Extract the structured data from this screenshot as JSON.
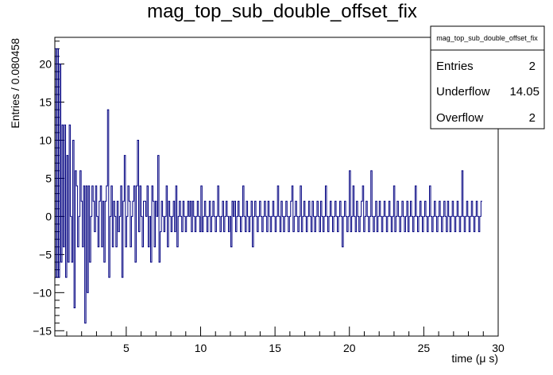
{
  "chart_data": {
    "type": "line",
    "title": "mag_top_sub_double_offset_fix",
    "xlabel": "time (μ s)",
    "ylabel": "Entries / 0.080458",
    "xlim": [
      0.2,
      30
    ],
    "ylim": [
      -15.7,
      23.5
    ],
    "xticks": [
      5,
      10,
      15,
      20,
      25,
      30
    ],
    "yticks": [
      -15,
      -10,
      -5,
      0,
      5,
      10,
      15,
      20
    ],
    "grid": false,
    "legend": "top-right",
    "line_color": "#000080",
    "bin_width": 0.080458,
    "series": [
      {
        "x0": 0.2,
        "values": [
          22,
          -8,
          22,
          -8,
          20,
          -6,
          12,
          -4,
          12,
          -8,
          8,
          -6,
          12,
          0,
          -6,
          10,
          -12,
          6,
          4,
          -4,
          0,
          6,
          2,
          -4,
          4,
          -14,
          4,
          -10,
          4,
          -6,
          0,
          4,
          2,
          -2,
          4,
          0,
          -4,
          2,
          4,
          -4,
          2,
          -6,
          2,
          4,
          14,
          -8,
          0,
          4,
          -4,
          2,
          0,
          -4,
          2,
          -2,
          0,
          4,
          -8,
          2,
          8,
          -4,
          0,
          4,
          2,
          -4,
          0,
          2,
          4,
          -6,
          4,
          10,
          -2,
          4,
          0,
          -4,
          2,
          2,
          0,
          4,
          -4,
          0,
          -6,
          4,
          2,
          -4,
          2,
          0,
          8,
          -6,
          -2,
          2,
          0,
          -2,
          0,
          4,
          -4,
          2,
          0,
          -2,
          0,
          2,
          -2,
          4,
          -4,
          0,
          2,
          0,
          -2,
          2,
          0,
          -2,
          0,
          2,
          0,
          2,
          -2,
          2,
          0,
          -2,
          0,
          2,
          0,
          -2,
          4,
          -2,
          0,
          2,
          0,
          -2,
          0,
          2,
          -2,
          0,
          2,
          0,
          -2,
          0,
          4,
          0,
          -2,
          0,
          2,
          -2,
          0,
          2,
          0,
          -2,
          0,
          -4,
          2,
          0,
          2,
          -2,
          0,
          2,
          0,
          -2,
          0,
          4,
          0,
          -2,
          2,
          0,
          -2,
          0,
          2,
          -4,
          0,
          2,
          0,
          -2,
          0,
          2,
          0,
          -2,
          0,
          2,
          0,
          -2,
          2,
          0,
          -2,
          0,
          2,
          0,
          -2,
          0,
          4,
          0,
          -2,
          2,
          0,
          -2,
          0,
          2,
          0,
          -2,
          0,
          2,
          4,
          -2,
          0,
          2,
          0,
          -2,
          0,
          4,
          -2,
          0,
          2,
          0,
          -2,
          0,
          2,
          0,
          -2,
          2,
          0,
          -2,
          0,
          2,
          0,
          -2,
          2,
          0,
          -2,
          0,
          4,
          0,
          -2,
          0,
          2,
          0,
          -2,
          0,
          2,
          0,
          -2,
          0,
          2,
          0,
          -4,
          0,
          2,
          0,
          -2,
          0,
          6,
          -2,
          0,
          4,
          0,
          -2,
          2,
          0,
          -2,
          0,
          2,
          4,
          -2,
          0,
          2,
          0,
          -2,
          0,
          6,
          0,
          -2,
          0,
          2,
          -2,
          0,
          2,
          0,
          -2,
          0,
          2,
          0,
          -2,
          0,
          2,
          0,
          -2,
          0,
          4,
          -2,
          0,
          2,
          0,
          -2,
          0,
          2,
          0,
          -2,
          0,
          2,
          -2,
          0,
          2,
          0,
          -2,
          0,
          4,
          0,
          -2,
          0,
          2,
          0,
          -2,
          0,
          2,
          0,
          -2,
          0,
          4,
          0,
          -2,
          0,
          2,
          0,
          -2,
          0,
          2,
          0,
          -2,
          0,
          2,
          0,
          -2,
          2,
          0,
          -2,
          0,
          2,
          0,
          -2,
          0,
          2,
          0,
          -2,
          0,
          6,
          0,
          -2,
          0,
          2,
          0,
          -2,
          0,
          2,
          0,
          -2,
          0,
          2,
          0,
          -2,
          0,
          2
        ]
      }
    ]
  },
  "stats": {
    "title": "mag_top_sub_double_offset_fix",
    "rows": [
      {
        "label": "Entries",
        "value": "2"
      },
      {
        "label": "Underflow",
        "value": "14.05"
      },
      {
        "label": "Overflow",
        "value": "2"
      }
    ]
  }
}
